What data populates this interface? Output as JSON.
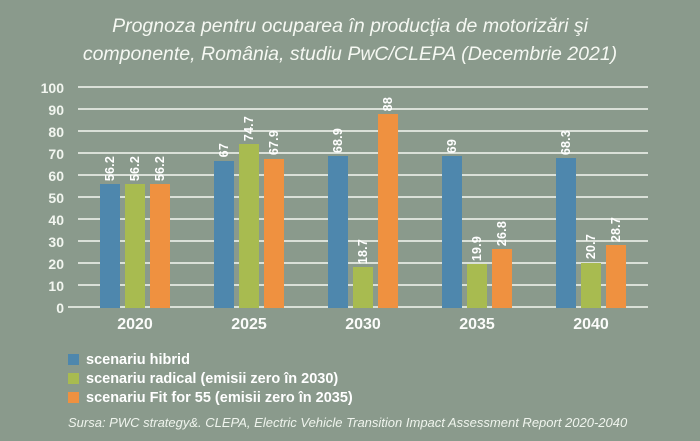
{
  "page": {
    "background": "#8a9a8c",
    "text_color": "#ffffff",
    "gridline_color": "#e7ece5"
  },
  "title": {
    "lines": [
      "Prognoza pentru ocuparea în producţia de motorizări şi",
      "componente, România, studiu PwC/CLEPA (Decembrie 2021)"
    ]
  },
  "source": "Sursa: PWC strategy&. CLEPA, Electric Vehicle Transition Impact Assessment Report 2020-2040",
  "chart_data": {
    "type": "bar",
    "categories": [
      "2020",
      "2025",
      "2030",
      "2035",
      "2040"
    ],
    "series": [
      {
        "name": "scenariu hibrid",
        "color": "#4e87ad",
        "values": [
          56.2,
          67,
          68.9,
          69,
          68.3
        ]
      },
      {
        "name": "scenariu radical (emisii zero în 2030)",
        "color": "#a8bb50",
        "values": [
          56.2,
          74.7,
          18.7,
          19.9,
          20.7
        ]
      },
      {
        "name": "scenariu Fit for 55 (emisii zero în 2035)",
        "color": "#ef9140",
        "values": [
          56.2,
          67.9,
          88,
          26.8,
          28.7
        ]
      }
    ],
    "title": "Prognoza pentru ocuparea în producţia de motorizări şi componente, România, studiu PwC/CLEPA (Decembrie 2021)",
    "xlabel": "",
    "ylabel": "",
    "ylim": [
      0,
      100
    ],
    "ytick_step": 10,
    "grid": true,
    "value_labels": "rotated-90-above-bars",
    "legend_position": "bottom-left"
  }
}
